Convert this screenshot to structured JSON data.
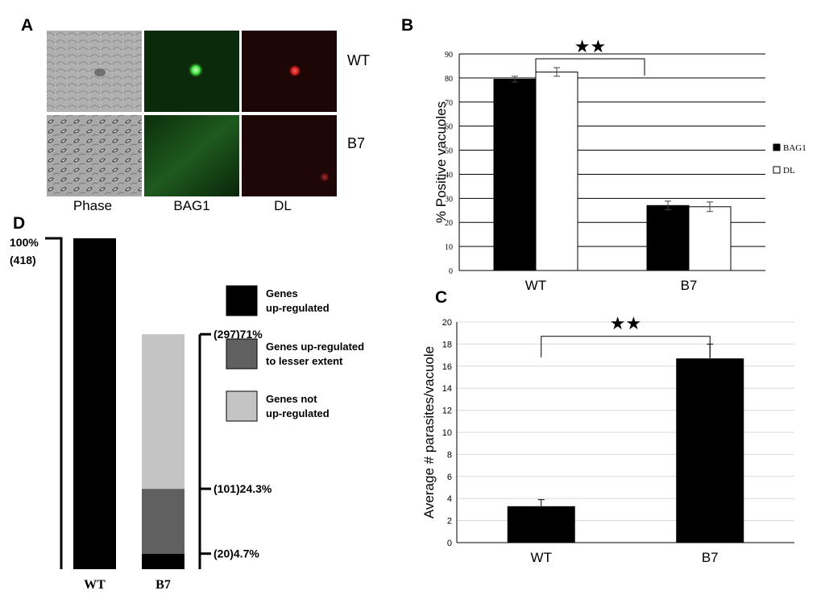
{
  "panel_a": {
    "letter": "A",
    "row_labels": [
      "WT",
      "B7"
    ],
    "column_labels": [
      "Phase",
      "BAG1",
      "DL"
    ]
  },
  "panel_b_letter": "B",
  "panel_c_letter": "C",
  "panel_d_letter": "D",
  "chart_data": [
    {
      "id": "B",
      "type": "bar",
      "categories": [
        "WT",
        "B7"
      ],
      "series": [
        {
          "name": "BAG1",
          "values": [
            79.5,
            27
          ],
          "error": [
            1.2,
            1.8
          ],
          "color": "#000000"
        },
        {
          "name": "DL",
          "values": [
            82.5,
            26.5
          ],
          "error": [
            1.8,
            2.0
          ],
          "color": "#ffffff"
        }
      ],
      "ylabel": "% Positive vacuoles",
      "ylim": [
        0,
        90
      ],
      "yticks": [
        0,
        10,
        20,
        30,
        40,
        50,
        60,
        70,
        80,
        90
      ],
      "grid": true,
      "legend": "right",
      "significance": "★★"
    },
    {
      "id": "C",
      "type": "bar",
      "categories": [
        "WT",
        "B7"
      ],
      "values": [
        3.3,
        16.7
      ],
      "error": [
        0.6,
        1.3
      ],
      "color": "#000000",
      "ylabel": "Average # parasites/vacuole",
      "ylim": [
        0,
        20
      ],
      "yticks": [
        0,
        2,
        4,
        6,
        8,
        10,
        12,
        14,
        16,
        18,
        20
      ],
      "grid": true,
      "significance": "★★"
    },
    {
      "id": "D",
      "type": "bar",
      "stacked": true,
      "categories": [
        "WT",
        "B7"
      ],
      "series": [
        {
          "name": "Genes up-regulated",
          "values": [
            100,
            4.7
          ],
          "color": "#000000"
        },
        {
          "name": "Genes up-regulated to lesser extent",
          "values": [
            0,
            19.6
          ],
          "color": "#606060"
        },
        {
          "name": "Genes not up-regulated",
          "values": [
            0,
            46.7
          ],
          "color": "#c4c4c4"
        }
      ],
      "legend_labels": [
        [
          "Genes",
          "up-regulated"
        ],
        [
          "Genes up-regulated",
          "to lesser extent"
        ],
        [
          "Genes not",
          "up-regulated"
        ]
      ],
      "left_annotation": [
        "100%",
        "(418)"
      ],
      "right_annotations": [
        {
          "value": 71,
          "label": "(297)71%"
        },
        {
          "value": 24.3,
          "label": "(101)24.3%"
        },
        {
          "value": 4.7,
          "label": "(20)4.7%"
        }
      ],
      "ylim": [
        0,
        100
      ]
    }
  ]
}
